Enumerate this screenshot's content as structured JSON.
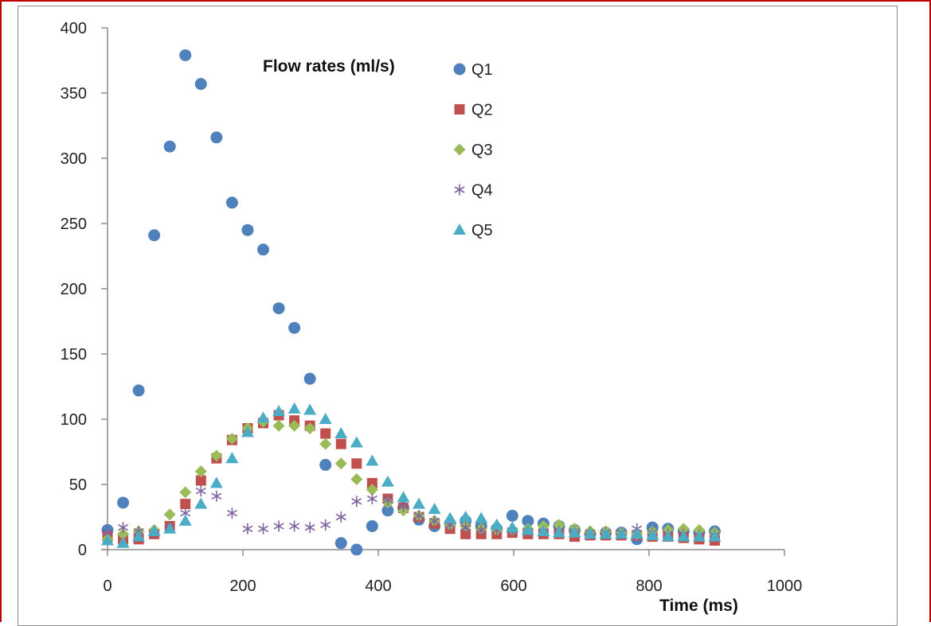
{
  "chart_data": {
    "type": "scatter",
    "title": "",
    "xlabel": "Time (ms)",
    "ylabel": "",
    "legend_title": "Flow rates (ml/s)",
    "legend_placement": "top-center",
    "xlim": [
      0,
      1000
    ],
    "ylim": [
      0,
      400
    ],
    "x_ticks": [
      "0",
      "200",
      "400",
      "600",
      "800",
      "1000"
    ],
    "y_ticks": [
      "0",
      "50",
      "100",
      "150",
      "200",
      "250",
      "300",
      "350",
      "400"
    ],
    "grid": false,
    "series": [
      {
        "name": "Q1",
        "marker": "circle",
        "color": "#4f81bd",
        "x": [
          0,
          23,
          46,
          69,
          92,
          115,
          138,
          161,
          184,
          207,
          230,
          253,
          276,
          299,
          322,
          345,
          368,
          391,
          414,
          437,
          460,
          483,
          506,
          529,
          552,
          575,
          598,
          621,
          644,
          667,
          690,
          713,
          736,
          759,
          782,
          805,
          828,
          851,
          874,
          897
        ],
        "y": [
          15,
          36,
          122,
          241,
          309,
          379,
          357,
          316,
          266,
          245,
          230,
          185,
          170,
          131,
          65,
          5,
          0,
          18,
          30,
          32,
          23,
          18,
          20,
          22,
          18,
          16,
          26,
          22,
          20,
          18,
          15,
          12,
          13,
          13,
          8,
          17,
          16,
          14,
          13,
          14
        ]
      },
      {
        "name": "Q2",
        "marker": "square",
        "color": "#c0504d",
        "x": [
          0,
          23,
          46,
          69,
          92,
          115,
          138,
          161,
          184,
          207,
          230,
          253,
          276,
          299,
          322,
          345,
          368,
          391,
          414,
          437,
          460,
          483,
          506,
          529,
          552,
          575,
          598,
          621,
          644,
          667,
          690,
          713,
          736,
          759,
          782,
          805,
          828,
          851,
          874,
          897
        ],
        "y": [
          10,
          8,
          8,
          12,
          18,
          35,
          53,
          70,
          84,
          93,
          97,
          103,
          99,
          95,
          89,
          81,
          66,
          51,
          39,
          32,
          25,
          20,
          16,
          12,
          12,
          12,
          13,
          12,
          12,
          12,
          10,
          11,
          11,
          11,
          11,
          10,
          10,
          9,
          8,
          7
        ]
      },
      {
        "name": "Q3",
        "marker": "diamond",
        "color": "#9bbb59",
        "x": [
          0,
          23,
          46,
          69,
          92,
          115,
          138,
          161,
          184,
          207,
          230,
          253,
          276,
          299,
          322,
          345,
          368,
          391,
          414,
          437,
          460,
          483,
          506,
          529,
          552,
          575,
          598,
          621,
          644,
          667,
          690,
          713,
          736,
          759,
          782,
          805,
          828,
          851,
          874,
          897
        ],
        "y": [
          8,
          12,
          14,
          15,
          27,
          44,
          60,
          72,
          85,
          93,
          98,
          95,
          95,
          93,
          81,
          66,
          54,
          46,
          36,
          30,
          26,
          22,
          19,
          18,
          16,
          15,
          15,
          16,
          18,
          19,
          16,
          14,
          14,
          13,
          12,
          14,
          15,
          16,
          15,
          13
        ]
      },
      {
        "name": "Q4",
        "marker": "asterisk",
        "color": "#8064a2",
        "x": [
          0,
          23,
          46,
          69,
          92,
          115,
          138,
          161,
          184,
          207,
          230,
          253,
          276,
          299,
          322,
          345,
          368,
          391,
          414,
          437,
          460,
          483,
          506,
          529,
          552,
          575,
          598,
          621,
          644,
          667,
          690,
          713,
          736,
          759,
          782,
          805,
          828,
          851,
          874,
          897
        ],
        "y": [
          13,
          17,
          14,
          13,
          17,
          28,
          45,
          41,
          28,
          16,
          16,
          18,
          18,
          17,
          19,
          25,
          37,
          39,
          38,
          33,
          26,
          22,
          19,
          17,
          15,
          15,
          14,
          14,
          14,
          14,
          14,
          13,
          13,
          13,
          16,
          13,
          12,
          12,
          11,
          11
        ]
      },
      {
        "name": "Q5",
        "marker": "triangle",
        "color": "#4bacc6",
        "x": [
          0,
          23,
          46,
          69,
          92,
          115,
          138,
          161,
          184,
          207,
          230,
          253,
          276,
          299,
          322,
          345,
          368,
          391,
          414,
          437,
          460,
          483,
          506,
          529,
          552,
          575,
          598,
          621,
          644,
          667,
          690,
          713,
          736,
          759,
          782,
          805,
          828,
          851,
          874,
          897
        ],
        "y": [
          7,
          5,
          10,
          14,
          16,
          22,
          35,
          51,
          70,
          90,
          101,
          106,
          108,
          107,
          100,
          89,
          82,
          68,
          52,
          40,
          35,
          31,
          24,
          25,
          24,
          19,
          17,
          15,
          14,
          13,
          13,
          12,
          12,
          12,
          12,
          11,
          10,
          10,
          10,
          10
        ]
      }
    ]
  }
}
